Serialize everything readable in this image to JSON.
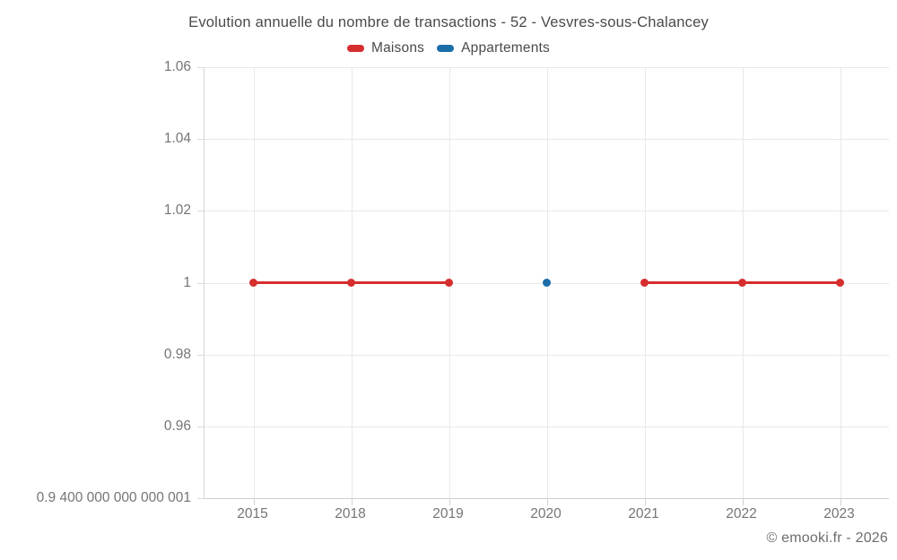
{
  "chart_data": {
    "type": "line",
    "title": "Evolution annuelle du nombre de transactions - 52 - Vesvres-sous-Chalancey",
    "xlabel": "",
    "ylabel": "",
    "categories": [
      "2015",
      "2018",
      "2019",
      "2020",
      "2021",
      "2022",
      "2023"
    ],
    "series": [
      {
        "name": "Maisons",
        "color": "#d62e2e",
        "values": [
          1,
          1,
          1,
          null,
          1,
          1,
          1
        ]
      },
      {
        "name": "Appartements",
        "color": "#1b6ea8",
        "values": [
          null,
          null,
          null,
          1,
          null,
          null,
          null
        ]
      }
    ],
    "y_ticks": [
      {
        "value": 1.06,
        "label": "1.06"
      },
      {
        "value": 1.04,
        "label": "1.04"
      },
      {
        "value": 1.02,
        "label": "1.02"
      },
      {
        "value": 1,
        "label": "1"
      },
      {
        "value": 0.98,
        "label": "0.98"
      },
      {
        "value": 0.96,
        "label": "0.96"
      },
      {
        "value": 0.9400000000000001,
        "label": "0.9 400 000 000 000 001"
      }
    ],
    "ylim": [
      0.9400000000000001,
      1.06
    ],
    "grid": true,
    "legend_position": "top"
  },
  "footer": {
    "credit": "© emooki.fr - 2026"
  }
}
